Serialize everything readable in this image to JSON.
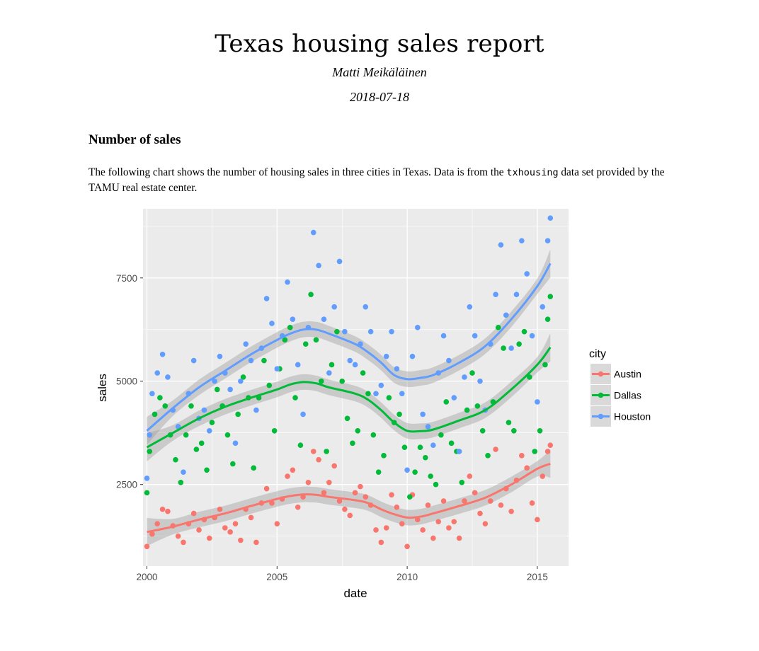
{
  "report": {
    "title": "Texas housing sales report",
    "author": "Matti Meikäläinen",
    "date": "2018-07-18",
    "section_heading": "Number of sales",
    "paragraph_before": "The following chart shows the number of housing sales in three cities in Texas. Data is from the ",
    "paragraph_code": "txhousing",
    "paragraph_after": " data set provided by the TAMU real estate center."
  },
  "chart_data": {
    "type": "scatter",
    "xlabel": "date",
    "ylabel": "sales",
    "xlim": [
      1999.85,
      2016.2
    ],
    "ylim": [
      525,
      9175
    ],
    "x_ticks": [
      2000,
      2005,
      2010,
      2015
    ],
    "y_ticks": [
      2500,
      5000,
      7500
    ],
    "grid": true,
    "legend": {
      "title": "city",
      "position": "right"
    },
    "series": [
      {
        "name": "Austin",
        "color": "#F8766D",
        "smooth": [
          [
            2000,
            1350
          ],
          [
            2001,
            1480
          ],
          [
            2002,
            1650
          ],
          [
            2003,
            1800
          ],
          [
            2004,
            1980
          ],
          [
            2005,
            2150
          ],
          [
            2005.5,
            2220
          ],
          [
            2006,
            2260
          ],
          [
            2006.5,
            2250
          ],
          [
            2007,
            2200
          ],
          [
            2008,
            2120
          ],
          [
            2008.5,
            2050
          ],
          [
            2009,
            1900
          ],
          [
            2009.5,
            1780
          ],
          [
            2010,
            1700
          ],
          [
            2010.5,
            1720
          ],
          [
            2011,
            1800
          ],
          [
            2012,
            1980
          ],
          [
            2013,
            2180
          ],
          [
            2014,
            2500
          ],
          [
            2015,
            2880
          ],
          [
            2015.5,
            3000
          ]
        ],
        "values": [
          [
            2000,
            1000
          ],
          [
            2000.2,
            1300
          ],
          [
            2000.4,
            1550
          ],
          [
            2000.6,
            1900
          ],
          [
            2000.8,
            1850
          ],
          [
            2001,
            1500
          ],
          [
            2001.2,
            1250
          ],
          [
            2001.4,
            1100
          ],
          [
            2001.6,
            1550
          ],
          [
            2001.8,
            1800
          ],
          [
            2002,
            1400
          ],
          [
            2002.2,
            1650
          ],
          [
            2002.4,
            1200
          ],
          [
            2002.6,
            1700
          ],
          [
            2002.8,
            1900
          ],
          [
            2003,
            1450
          ],
          [
            2003.2,
            1350
          ],
          [
            2003.4,
            1550
          ],
          [
            2003.6,
            1150
          ],
          [
            2003.8,
            1900
          ],
          [
            2004,
            1700
          ],
          [
            2004.2,
            1100
          ],
          [
            2004.4,
            2050
          ],
          [
            2004.6,
            2400
          ],
          [
            2004.8,
            2050
          ],
          [
            2005,
            1550
          ],
          [
            2005.2,
            2150
          ],
          [
            2005.4,
            2700
          ],
          [
            2005.6,
            2850
          ],
          [
            2005.8,
            1950
          ],
          [
            2006,
            2200
          ],
          [
            2006.2,
            2550
          ],
          [
            2006.4,
            3300
          ],
          [
            2006.6,
            3100
          ],
          [
            2006.8,
            2300
          ],
          [
            2007,
            2550
          ],
          [
            2007.2,
            2950
          ],
          [
            2007.4,
            2100
          ],
          [
            2007.6,
            1900
          ],
          [
            2007.8,
            1750
          ],
          [
            2008,
            2300
          ],
          [
            2008.2,
            2450
          ],
          [
            2008.4,
            2200
          ],
          [
            2008.6,
            2000
          ],
          [
            2008.8,
            1400
          ],
          [
            2009,
            1100
          ],
          [
            2009.2,
            1450
          ],
          [
            2009.4,
            2250
          ],
          [
            2009.6,
            1950
          ],
          [
            2009.8,
            1550
          ],
          [
            2010,
            1000
          ],
          [
            2010.2,
            2250
          ],
          [
            2010.4,
            1650
          ],
          [
            2010.6,
            1400
          ],
          [
            2010.8,
            2000
          ],
          [
            2011,
            1200
          ],
          [
            2011.2,
            1600
          ],
          [
            2011.4,
            2100
          ],
          [
            2011.6,
            1450
          ],
          [
            2011.8,
            1600
          ],
          [
            2012,
            1200
          ],
          [
            2012.2,
            2100
          ],
          [
            2012.4,
            2700
          ],
          [
            2012.6,
            2300
          ],
          [
            2012.8,
            1800
          ],
          [
            2013,
            1550
          ],
          [
            2013.2,
            2100
          ],
          [
            2013.4,
            3350
          ],
          [
            2013.6,
            2000
          ],
          [
            2013.8,
            2400
          ],
          [
            2014,
            1850
          ],
          [
            2014.2,
            2600
          ],
          [
            2014.4,
            3200
          ],
          [
            2014.6,
            2900
          ],
          [
            2014.8,
            2050
          ],
          [
            2015,
            1650
          ],
          [
            2015.2,
            2700
          ],
          [
            2015.4,
            3300
          ],
          [
            2015.5,
            3450
          ]
        ]
      },
      {
        "name": "Dallas",
        "color": "#00BA38",
        "smooth": [
          [
            2000,
            3400
          ],
          [
            2001,
            3750
          ],
          [
            2002,
            4100
          ],
          [
            2003,
            4380
          ],
          [
            2004,
            4600
          ],
          [
            2005,
            4800
          ],
          [
            2005.5,
            4920
          ],
          [
            2006,
            4980
          ],
          [
            2006.5,
            4950
          ],
          [
            2007,
            4850
          ],
          [
            2008,
            4700
          ],
          [
            2008.5,
            4550
          ],
          [
            2009,
            4300
          ],
          [
            2009.5,
            4000
          ],
          [
            2010,
            3800
          ],
          [
            2010.5,
            3790
          ],
          [
            2011,
            3830
          ],
          [
            2012,
            4050
          ],
          [
            2013,
            4300
          ],
          [
            2014,
            4800
          ],
          [
            2015,
            5400
          ],
          [
            2015.5,
            5820
          ]
        ],
        "values": [
          [
            2000,
            2300
          ],
          [
            2000.1,
            3300
          ],
          [
            2000.3,
            4200
          ],
          [
            2000.5,
            4600
          ],
          [
            2000.7,
            4400
          ],
          [
            2000.9,
            3700
          ],
          [
            2001.1,
            3100
          ],
          [
            2001.3,
            2550
          ],
          [
            2001.5,
            3700
          ],
          [
            2001.7,
            4400
          ],
          [
            2001.9,
            3350
          ],
          [
            2002.1,
            3500
          ],
          [
            2002.3,
            2850
          ],
          [
            2002.5,
            4000
          ],
          [
            2002.7,
            4800
          ],
          [
            2002.9,
            4400
          ],
          [
            2003.1,
            3700
          ],
          [
            2003.3,
            3000
          ],
          [
            2003.5,
            4200
          ],
          [
            2003.7,
            5100
          ],
          [
            2003.9,
            4600
          ],
          [
            2004.1,
            2900
          ],
          [
            2004.3,
            4600
          ],
          [
            2004.5,
            5500
          ],
          [
            2004.7,
            4900
          ],
          [
            2004.9,
            3800
          ],
          [
            2005.1,
            5300
          ],
          [
            2005.3,
            6000
          ],
          [
            2005.5,
            6300
          ],
          [
            2005.7,
            4600
          ],
          [
            2005.9,
            3450
          ],
          [
            2006.1,
            5900
          ],
          [
            2006.3,
            7100
          ],
          [
            2006.5,
            6000
          ],
          [
            2006.7,
            5000
          ],
          [
            2006.9,
            3300
          ],
          [
            2007.1,
            5400
          ],
          [
            2007.3,
            6200
          ],
          [
            2007.5,
            5000
          ],
          [
            2007.7,
            4100
          ],
          [
            2007.9,
            3500
          ],
          [
            2008.1,
            3800
          ],
          [
            2008.3,
            5200
          ],
          [
            2008.5,
            4700
          ],
          [
            2008.7,
            3700
          ],
          [
            2008.9,
            2800
          ],
          [
            2009.1,
            3200
          ],
          [
            2009.3,
            4600
          ],
          [
            2009.5,
            4000
          ],
          [
            2009.7,
            4200
          ],
          [
            2009.9,
            3400
          ],
          [
            2010.1,
            2200
          ],
          [
            2010.3,
            2800
          ],
          [
            2010.5,
            3400
          ],
          [
            2010.7,
            3150
          ],
          [
            2010.9,
            2700
          ],
          [
            2011.1,
            2500
          ],
          [
            2011.3,
            3700
          ],
          [
            2011.5,
            4500
          ],
          [
            2011.7,
            3500
          ],
          [
            2011.9,
            3300
          ],
          [
            2012.1,
            2550
          ],
          [
            2012.3,
            4300
          ],
          [
            2012.5,
            5200
          ],
          [
            2012.7,
            4400
          ],
          [
            2012.9,
            3800
          ],
          [
            2013.1,
            3200
          ],
          [
            2013.3,
            4500
          ],
          [
            2013.5,
            6300
          ],
          [
            2013.7,
            5800
          ],
          [
            2013.9,
            4000
          ],
          [
            2014.1,
            3800
          ],
          [
            2014.3,
            5900
          ],
          [
            2014.5,
            6200
          ],
          [
            2014.7,
            5100
          ],
          [
            2014.9,
            3300
          ],
          [
            2015.1,
            3800
          ],
          [
            2015.3,
            5400
          ],
          [
            2015.4,
            6500
          ],
          [
            2015.5,
            7050
          ]
        ]
      },
      {
        "name": "Houston",
        "color": "#619CFF",
        "smooth": [
          [
            2000,
            3800
          ],
          [
            2001,
            4350
          ],
          [
            2002,
            4850
          ],
          [
            2003,
            5250
          ],
          [
            2004,
            5650
          ],
          [
            2005,
            6000
          ],
          [
            2005.5,
            6150
          ],
          [
            2006,
            6250
          ],
          [
            2006.5,
            6250
          ],
          [
            2007,
            6150
          ],
          [
            2008,
            5900
          ],
          [
            2008.5,
            5700
          ],
          [
            2009,
            5450
          ],
          [
            2009.5,
            5150
          ],
          [
            2010,
            5050
          ],
          [
            2010.5,
            5080
          ],
          [
            2011,
            5150
          ],
          [
            2012,
            5450
          ],
          [
            2013,
            5850
          ],
          [
            2014,
            6500
          ],
          [
            2015,
            7300
          ],
          [
            2015.5,
            7850
          ]
        ],
        "values": [
          [
            2000,
            2650
          ],
          [
            2000.1,
            3700
          ],
          [
            2000.2,
            4700
          ],
          [
            2000.4,
            5200
          ],
          [
            2000.6,
            5650
          ],
          [
            2000.8,
            5100
          ],
          [
            2001,
            4300
          ],
          [
            2001.2,
            3900
          ],
          [
            2001.4,
            2800
          ],
          [
            2001.6,
            4700
          ],
          [
            2001.8,
            5500
          ],
          [
            2002,
            4100
          ],
          [
            2002.2,
            4300
          ],
          [
            2002.4,
            3800
          ],
          [
            2002.6,
            5000
          ],
          [
            2002.8,
            5600
          ],
          [
            2003,
            5200
          ],
          [
            2003.2,
            4800
          ],
          [
            2003.4,
            3500
          ],
          [
            2003.6,
            5000
          ],
          [
            2003.8,
            5900
          ],
          [
            2004,
            5500
          ],
          [
            2004.2,
            4300
          ],
          [
            2004.4,
            5800
          ],
          [
            2004.6,
            7000
          ],
          [
            2004.8,
            6400
          ],
          [
            2005,
            5300
          ],
          [
            2005.2,
            6100
          ],
          [
            2005.4,
            7400
          ],
          [
            2005.6,
            6500
          ],
          [
            2005.8,
            5400
          ],
          [
            2006,
            4200
          ],
          [
            2006.2,
            6300
          ],
          [
            2006.4,
            8600
          ],
          [
            2006.6,
            7800
          ],
          [
            2006.8,
            6500
          ],
          [
            2007,
            5200
          ],
          [
            2007.2,
            6800
          ],
          [
            2007.4,
            7900
          ],
          [
            2007.6,
            6200
          ],
          [
            2007.8,
            5500
          ],
          [
            2008,
            5400
          ],
          [
            2008.2,
            5900
          ],
          [
            2008.4,
            6800
          ],
          [
            2008.6,
            6200
          ],
          [
            2008.8,
            4700
          ],
          [
            2009,
            4900
          ],
          [
            2009.2,
            5600
          ],
          [
            2009.4,
            6200
          ],
          [
            2009.6,
            5300
          ],
          [
            2009.8,
            4700
          ],
          [
            2010,
            2850
          ],
          [
            2010.2,
            5600
          ],
          [
            2010.4,
            6300
          ],
          [
            2010.6,
            4200
          ],
          [
            2010.8,
            3900
          ],
          [
            2011,
            3450
          ],
          [
            2011.2,
            5200
          ],
          [
            2011.4,
            6100
          ],
          [
            2011.6,
            5500
          ],
          [
            2011.8,
            4600
          ],
          [
            2012,
            3300
          ],
          [
            2012.2,
            5100
          ],
          [
            2012.4,
            6800
          ],
          [
            2012.6,
            6100
          ],
          [
            2012.8,
            5000
          ],
          [
            2013,
            4300
          ],
          [
            2013.2,
            5900
          ],
          [
            2013.4,
            7100
          ],
          [
            2013.6,
            8300
          ],
          [
            2013.8,
            6600
          ],
          [
            2014,
            5800
          ],
          [
            2014.2,
            7100
          ],
          [
            2014.4,
            8400
          ],
          [
            2014.6,
            7600
          ],
          [
            2014.8,
            6100
          ],
          [
            2015,
            4500
          ],
          [
            2015.2,
            6800
          ],
          [
            2015.4,
            8400
          ],
          [
            2015.5,
            8950
          ]
        ]
      }
    ]
  }
}
